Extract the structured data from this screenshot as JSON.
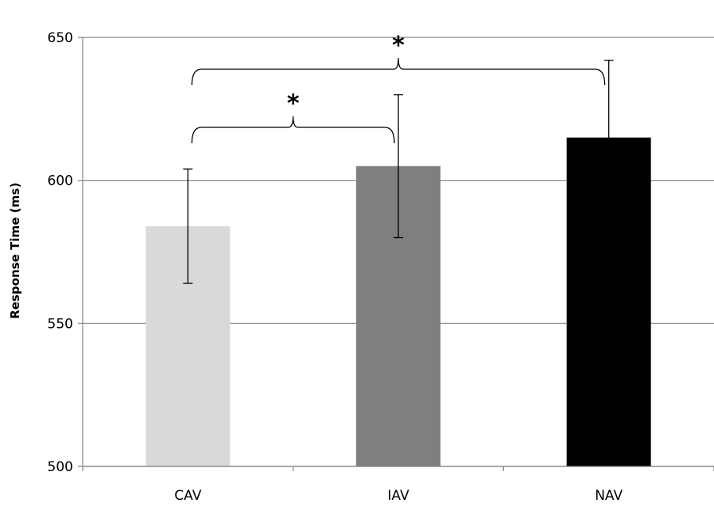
{
  "chart_data": {
    "type": "bar",
    "title": "",
    "xlabel": "",
    "ylabel": "Response Time (ms)",
    "ylim": [
      500,
      650
    ],
    "yticks": [
      500,
      550,
      600,
      650
    ],
    "grid": true,
    "legend": "none",
    "categories": [
      "CAV",
      "IAV",
      "NAV"
    ],
    "values": [
      584,
      605,
      615
    ],
    "errors": [
      20,
      25,
      27
    ],
    "colors": [
      "#d9d9d9",
      "#7f7f7f",
      "#000000"
    ],
    "significance": [
      {
        "from": "CAV",
        "to": "IAV",
        "label": "*"
      },
      {
        "from": "CAV",
        "to": "NAV",
        "label": "*"
      }
    ]
  }
}
